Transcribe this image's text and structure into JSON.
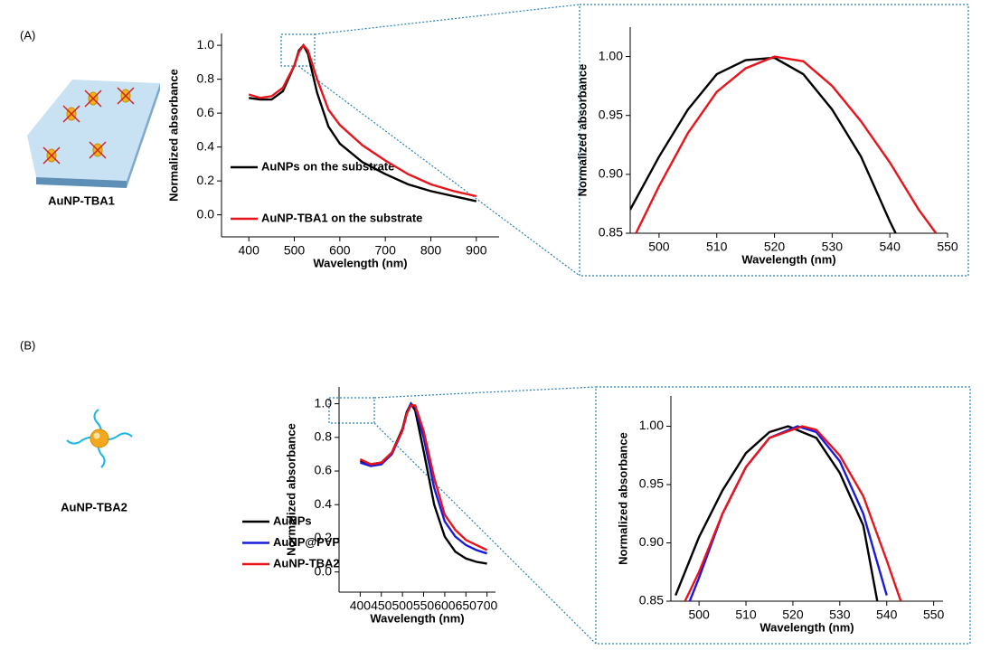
{
  "panels": [
    {
      "label": "(A)",
      "sample": "AuNP-TBA1"
    },
    {
      "label": "(B)",
      "sample": "AuNP-TBA2"
    }
  ],
  "chart_data": [
    {
      "type": "line",
      "xlabel": "Wavelength (nm)",
      "ylabel": "Normalized absorbance",
      "xlim": [
        340,
        950
      ],
      "xticks": [
        400,
        500,
        600,
        700,
        800,
        900
      ],
      "ylim": [
        -0.13,
        1.07
      ],
      "yticks": [
        {
          "value": 0,
          "label": "0.0"
        },
        0.2,
        0.4,
        0.6,
        0.8,
        {
          "value": 1,
          "label": "1.0"
        }
      ],
      "x": [
        400,
        425,
        450,
        475,
        500,
        510,
        520,
        530,
        550,
        575,
        600,
        650,
        700,
        750,
        800,
        850,
        900
      ],
      "series": [
        {
          "name": "AuNPs on the substrate",
          "color": "#000000",
          "values": [
            0.69,
            0.68,
            0.68,
            0.73,
            0.88,
            0.97,
            1.0,
            0.95,
            0.72,
            0.52,
            0.42,
            0.31,
            0.24,
            0.18,
            0.14,
            0.11,
            0.08
          ]
        },
        {
          "name": "AuNP-TBA1 on the substrate",
          "color": "#e8141b",
          "values": [
            0.71,
            0.69,
            0.7,
            0.75,
            0.88,
            0.96,
            1.0,
            0.97,
            0.8,
            0.62,
            0.53,
            0.41,
            0.32,
            0.24,
            0.18,
            0.14,
            0.11
          ]
        }
      ]
    },
    {
      "type": "line",
      "xlabel": "Wavelength (nm)",
      "ylabel": "Normalized absorbance",
      "xlim": [
        495,
        550
      ],
      "xticks": [
        500,
        510,
        520,
        530,
        540,
        550
      ],
      "ylim": [
        0.85,
        1.025
      ],
      "yticks": [
        0.85,
        {
          "value": 0.9,
          "label": "0.90"
        },
        0.95,
        {
          "value": 1,
          "label": "1.00"
        }
      ],
      "series": [
        {
          "color": "#000000",
          "x": [
            495,
            500,
            505,
            510,
            515,
            520,
            525,
            530,
            535,
            540,
            541
          ],
          "values": [
            0.87,
            0.915,
            0.955,
            0.985,
            0.997,
            0.999,
            0.985,
            0.955,
            0.915,
            0.86,
            0.85
          ]
        },
        {
          "color": "#e8141b",
          "x": [
            496,
            500,
            505,
            510,
            515,
            520,
            525,
            530,
            535,
            540,
            545,
            548
          ],
          "values": [
            0.85,
            0.89,
            0.935,
            0.97,
            0.99,
            1.0,
            0.996,
            0.975,
            0.945,
            0.91,
            0.87,
            0.85
          ]
        }
      ]
    },
    {
      "type": "line",
      "xlabel": "Wavelength (nm)",
      "ylabel": "Normalized absorbance",
      "xlim": [
        350,
        720
      ],
      "xticks": [
        400,
        450,
        500,
        550,
        600,
        650,
        700
      ],
      "ylim": [
        -0.12,
        1.1
      ],
      "yticks": [
        {
          "value": 0,
          "label": "0.0"
        },
        0.2,
        0.4,
        0.6,
        0.8,
        {
          "value": 1,
          "label": "1.0"
        }
      ],
      "x": [
        400,
        425,
        450,
        475,
        500,
        510,
        520,
        530,
        550,
        575,
        600,
        625,
        650,
        675,
        700
      ],
      "series": [
        {
          "name": "AuNPs",
          "color": "#000000",
          "values": [
            0.66,
            0.64,
            0.65,
            0.71,
            0.85,
            0.95,
            1.0,
            0.96,
            0.72,
            0.4,
            0.21,
            0.12,
            0.08,
            0.06,
            0.05
          ]
        },
        {
          "name": "AuNP@PVP",
          "color": "#1a1adc",
          "values": [
            0.65,
            0.63,
            0.64,
            0.7,
            0.84,
            0.94,
            1.0,
            0.98,
            0.8,
            0.5,
            0.3,
            0.21,
            0.16,
            0.13,
            0.11
          ]
        },
        {
          "name": "AuNP-TBA2",
          "color": "#e8141b",
          "values": [
            0.67,
            0.64,
            0.65,
            0.71,
            0.84,
            0.94,
            0.99,
            0.99,
            0.84,
            0.56,
            0.34,
            0.25,
            0.19,
            0.16,
            0.13
          ]
        }
      ]
    },
    {
      "type": "line",
      "xlabel": "Wavelength (nm)",
      "ylabel": "Normalized absorbance",
      "xlim": [
        494,
        552
      ],
      "xticks": [
        500,
        510,
        520,
        530,
        540,
        550
      ],
      "ylim": [
        0.85,
        1.026
      ],
      "yticks": [
        0.85,
        {
          "value": 0.9,
          "label": "0.90"
        },
        0.95,
        {
          "value": 1,
          "label": "1.00"
        }
      ],
      "series": [
        {
          "color": "#000000",
          "x": [
            495,
            500,
            505,
            510,
            515,
            519,
            525,
            530,
            535,
            538
          ],
          "values": [
            0.855,
            0.905,
            0.945,
            0.977,
            0.995,
            1.0,
            0.99,
            0.96,
            0.915,
            0.85
          ]
        },
        {
          "color": "#1a1adc",
          "x": [
            498,
            500,
            505,
            510,
            515,
            521,
            525,
            530,
            535,
            540
          ],
          "values": [
            0.85,
            0.87,
            0.925,
            0.965,
            0.99,
            1.0,
            0.995,
            0.97,
            0.925,
            0.855
          ]
        },
        {
          "color": "#e8141b",
          "x": [
            497,
            500,
            505,
            510,
            515,
            522,
            525,
            530,
            535,
            540,
            543
          ],
          "values": [
            0.85,
            0.875,
            0.925,
            0.965,
            0.99,
            1.0,
            0.997,
            0.975,
            0.94,
            0.885,
            0.85
          ]
        }
      ]
    }
  ]
}
